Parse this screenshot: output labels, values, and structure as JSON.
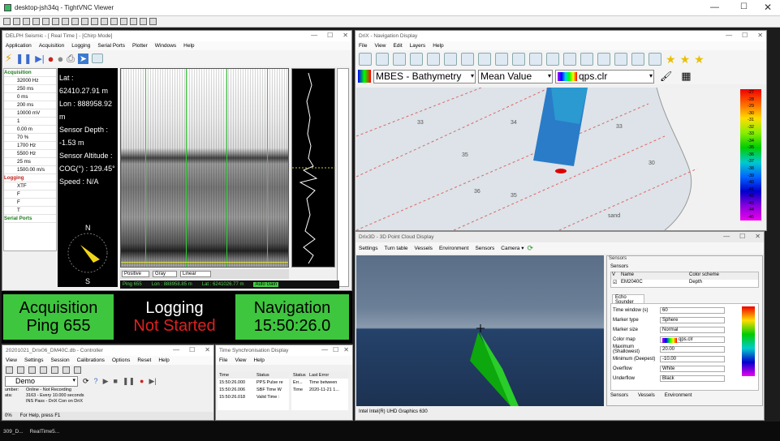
{
  "viewer": {
    "title": "desktop-jsh34q - TightVNC Viewer"
  },
  "delph": {
    "title": "DELPH Seismic - [ Real Time ] - [Chirp Mode]",
    "menu": [
      "Application",
      "Acquisition",
      "Logging",
      "Serial Ports",
      "Plotter",
      "Windows",
      "Help"
    ],
    "tree": {
      "acq_label": "Acquisition",
      "acq_values": [
        "32000 Hz",
        "250 ms",
        "0 ms",
        "200 ms",
        "10000 mV",
        "1",
        "0.00 m",
        "70 %",
        "1700 Hz",
        "5500 Hz",
        "25 ms",
        "1500.00 m/s"
      ],
      "log_label": "Logging",
      "log_values": [
        "XTF",
        "F",
        "F",
        "T"
      ],
      "serial_label": "Serial Ports"
    },
    "info": [
      "Lat : 62410.27.91 m",
      "Lon : 888958.92 m",
      "Sensor Depth : -1.53 m",
      "Sensor Altitude :",
      "COG(°) : 129.45°",
      "Speed : N/A"
    ],
    "bottom": {
      "ping": "Ping 655",
      "lon": "Lon : 888958.85 m",
      "lat": "Lat : 6241026.77 m",
      "auto": "Auto Gain"
    },
    "dropdowns": [
      "Positive",
      "Gray",
      "Linear"
    ],
    "compass": {
      "n": "N",
      "s": "S"
    },
    "status": {
      "acq1": "Acquisition",
      "acq2": "Ping 655",
      "log1": "Logging",
      "log2": "Not Started",
      "nav1": "Navigation",
      "nav2": "15:50:26.0"
    }
  },
  "nav": {
    "title": "DriX - Navigation Display",
    "menu": [
      "File",
      "View",
      "Edit",
      "Layers",
      "Help"
    ],
    "layer": "MBES - Bathymetry",
    "mode": "Mean Value",
    "palette": "qps.clr",
    "colorbar": [
      "-27",
      "-28",
      "-29",
      "-30",
      "-31",
      "-32",
      "-33",
      "-34",
      "-35",
      "-36",
      "-37",
      "-38",
      "-39",
      "-40",
      "-41",
      "-42",
      "-43",
      "-44",
      "-45"
    ],
    "soundings": [
      "33",
      "35",
      "34",
      "35",
      "33",
      "30",
      "36",
      "sand"
    ]
  },
  "d3": {
    "title": "Drix3D - 3D Point Cloud Display",
    "tabs": [
      "Settings",
      "Turn table",
      "Vessels",
      "Environment",
      "Sensors",
      "Camera ▾"
    ],
    "gpu": "Intel Intel(R) UHD Graphics 630",
    "panel": {
      "heading": "Sensors",
      "sub": "Sensors",
      "cols": [
        "V",
        "Name",
        "Color scheme"
      ],
      "row": [
        "EM2040C",
        "Depth"
      ],
      "tab": "Echo Sounder",
      "props": [
        [
          "Time window (s)",
          "60"
        ],
        [
          "Marker type",
          "Sphere"
        ],
        [
          "Marker size",
          "Normal"
        ],
        [
          "Color map",
          "qps.clr"
        ],
        [
          "Maximum (Shallowest)",
          "20.00"
        ],
        [
          "Minimum (Deepest)",
          "-10.00"
        ],
        [
          "Overflow",
          "White"
        ],
        [
          "Underflow",
          "Black"
        ]
      ],
      "btabs": [
        "Sensors",
        "Vessels",
        "Environment"
      ]
    }
  },
  "controller": {
    "title": "20201021_Drix06_DM40C.db - Controller",
    "menu": [
      "View",
      "Settings",
      "Session",
      "Calibrations",
      "Options",
      "Reset",
      "Help"
    ],
    "demo": "Demo",
    "lines": [
      "Online - Not Recording",
      "3163 - Every 10.000 seconds",
      "INS Pass - DriX Con on DriX"
    ],
    "left": [
      "umber:",
      "ata:"
    ],
    "status": "For Help, press F1",
    "percent": "0%"
  },
  "tsync": {
    "title": "Time Synchronisation Display",
    "menu": [
      "File",
      "View",
      "Help"
    ],
    "cols": [
      "Time",
      "Status"
    ],
    "rows": [
      [
        "15:50:26.000",
        "PPS Pulse re"
      ],
      [
        "15:50:26.006",
        "SBF Time W"
      ],
      [
        "15:50:26.018",
        "Valid Time :"
      ]
    ],
    "cols2": [
      "Status",
      "Last Error"
    ],
    "rows2": [
      [
        "Err...",
        "Time between"
      ],
      [
        "Time",
        "2020-11-21 1..."
      ]
    ]
  },
  "task": {
    "item1": "309_D...",
    "item2": "RealTime5..."
  }
}
